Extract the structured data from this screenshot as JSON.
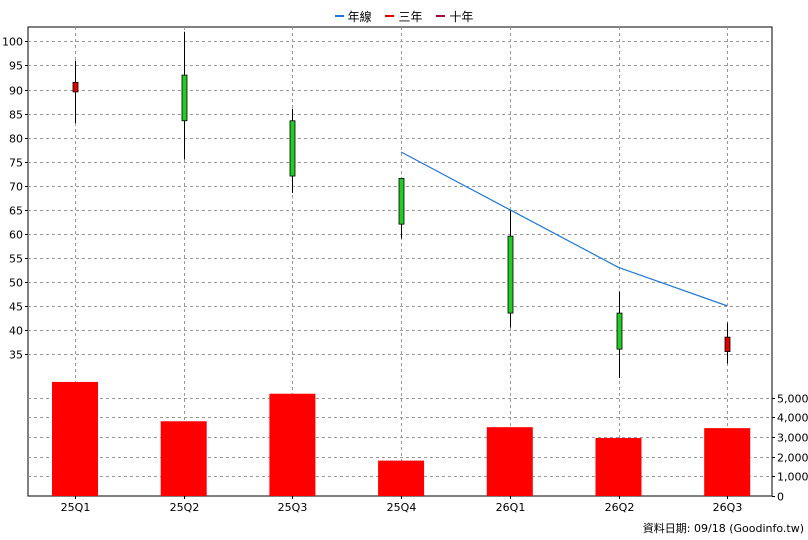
{
  "legend": [
    {
      "label": "年線",
      "color": "#1f78d8"
    },
    {
      "label": "三年",
      "color": "#e00000"
    },
    {
      "label": "十年",
      "color": "#a00040"
    }
  ],
  "footer": "資料日期: 09/18  (Goodinfo.tw)",
  "colors": {
    "up": "#e00000",
    "down": "#22cc22",
    "volume": "#ff0000",
    "line": "#1f78d8",
    "grid": "#999999"
  },
  "chart_data": {
    "type": "candlestick",
    "categories": [
      "25Q1",
      "25Q2",
      "25Q3",
      "25Q4",
      "26Q1",
      "26Q2",
      "26Q3"
    ],
    "price_axis": {
      "ylim": [
        30,
        103
      ],
      "ticks": [
        35,
        40,
        45,
        50,
        55,
        60,
        65,
        70,
        75,
        80,
        85,
        90,
        95,
        100
      ]
    },
    "candles": [
      {
        "open": 89.5,
        "close": 91.5,
        "high": 96,
        "low": 83
      },
      {
        "open": 93,
        "close": 83.5,
        "high": 102,
        "low": 75.5
      },
      {
        "open": 83.5,
        "close": 72,
        "high": 86,
        "low": 68.5
      },
      {
        "open": 71.5,
        "close": 62,
        "high": 71.5,
        "low": 59
      },
      {
        "open": 59.5,
        "close": 43.5,
        "high": 65,
        "low": 40.5
      },
      {
        "open": 43.5,
        "close": 36,
        "high": 48,
        "low": 30
      },
      {
        "open": 35.5,
        "close": 38.5,
        "high": 41.5,
        "low": 33
      }
    ],
    "year_line": {
      "name": "年線",
      "x_index": [
        3,
        4,
        5,
        6
      ],
      "values": [
        77,
        65,
        53,
        45
      ]
    },
    "volume_axis": {
      "ylim": [
        0,
        6000
      ],
      "ticks": [
        0,
        1000,
        2000,
        3000,
        4000,
        5000
      ],
      "tick_labels": [
        "0",
        "1,000",
        "2,000",
        "3,000",
        "4,000",
        "5,000"
      ]
    },
    "volumes": [
      5800,
      3800,
      5200,
      1800,
      3500,
      2950,
      3450
    ],
    "grid": true,
    "legend_position": "top-center"
  }
}
